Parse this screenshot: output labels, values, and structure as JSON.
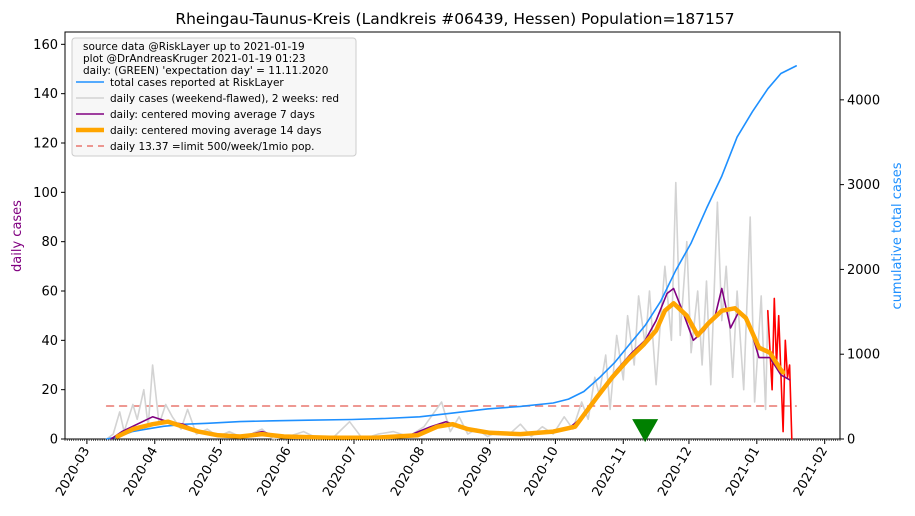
{
  "chart_data": {
    "type": "line",
    "title": "Rheingau-Taunus-Kreis (Landkreis #06439, Hessen) Population=187157",
    "ylabel_left": "daily cases",
    "ylabel_right": "cumulative total cases",
    "ylim_left": [
      0,
      165
    ],
    "ylim_right": [
      0,
      4800
    ],
    "yticks_left": [
      0,
      20,
      40,
      60,
      80,
      100,
      120,
      140,
      160
    ],
    "yticks_right": [
      0,
      1000,
      2000,
      3000,
      4000
    ],
    "x_ticks": [
      "2020-03",
      "2020-04",
      "2020-05",
      "2020-06",
      "2020-07",
      "2020-08",
      "2020-09",
      "2020-10",
      "2020-11",
      "2020-12",
      "2021-01",
      "2021-02"
    ],
    "x_start": "2020-02-20",
    "x_end": "2021-02-08",
    "legend_header": [
      "source data @RiskLayer up to 2021-01-19",
      "plot @DrAndreasKruger 2021-01-19 01:23",
      "daily: (GREEN) 'expectation day' = 11.11.2020"
    ],
    "legend_position": "top-left",
    "colors": {
      "total": "#1e90ff",
      "daily": "#d3d3d3",
      "daily_recent": "#ff0000",
      "ma7": "#800080",
      "ma14": "#ffa500",
      "limit": "#e8776f",
      "expectation": "#008000",
      "right_axis": "#1e90ff",
      "left_axis": "#800080"
    },
    "series": [
      {
        "name": "total cases reported at RiskLayer",
        "axis": "right",
        "points": [
          [
            "2020-03-10",
            0
          ],
          [
            "2020-03-15",
            25
          ],
          [
            "2020-03-22",
            90
          ],
          [
            "2020-03-29",
            120
          ],
          [
            "2020-04-05",
            150
          ],
          [
            "2020-04-15",
            175
          ],
          [
            "2020-04-25",
            185
          ],
          [
            "2020-05-10",
            205
          ],
          [
            "2020-05-25",
            215
          ],
          [
            "2020-06-10",
            222
          ],
          [
            "2020-06-30",
            230
          ],
          [
            "2020-07-15",
            242
          ],
          [
            "2020-07-31",
            262
          ],
          [
            "2020-08-15",
            305
          ],
          [
            "2020-08-31",
            355
          ],
          [
            "2020-09-15",
            385
          ],
          [
            "2020-09-30",
            425
          ],
          [
            "2020-10-07",
            470
          ],
          [
            "2020-10-14",
            560
          ],
          [
            "2020-10-21",
            720
          ],
          [
            "2020-10-28",
            900
          ],
          [
            "2020-11-04",
            1120
          ],
          [
            "2020-11-11",
            1340
          ],
          [
            "2020-11-18",
            1620
          ],
          [
            "2020-11-25",
            1990
          ],
          [
            "2020-12-02",
            2310
          ],
          [
            "2020-12-09",
            2720
          ],
          [
            "2020-12-16",
            3100
          ],
          [
            "2020-12-23",
            3560
          ],
          [
            "2020-12-30",
            3860
          ],
          [
            "2021-01-06",
            4130
          ],
          [
            "2021-01-12",
            4310
          ],
          [
            "2021-01-19",
            4400
          ]
        ]
      },
      {
        "name": "daily cases (weekend-flawed), 2 weeks: red",
        "axis": "left",
        "points": [
          [
            "2020-03-10",
            0
          ],
          [
            "2020-03-13",
            2
          ],
          [
            "2020-03-16",
            11
          ],
          [
            "2020-03-18",
            3
          ],
          [
            "2020-03-22",
            14
          ],
          [
            "2020-03-24",
            8
          ],
          [
            "2020-03-27",
            20
          ],
          [
            "2020-03-29",
            5
          ],
          [
            "2020-03-31",
            30
          ],
          [
            "2020-04-03",
            6
          ],
          [
            "2020-04-06",
            14
          ],
          [
            "2020-04-09",
            9
          ],
          [
            "2020-04-13",
            4
          ],
          [
            "2020-04-16",
            12
          ],
          [
            "2020-04-20",
            2
          ],
          [
            "2020-04-25",
            4
          ],
          [
            "2020-04-30",
            1
          ],
          [
            "2020-05-05",
            3
          ],
          [
            "2020-05-10",
            1
          ],
          [
            "2020-05-15",
            2
          ],
          [
            "2020-05-20",
            4
          ],
          [
            "2020-05-25",
            0
          ],
          [
            "2020-06-01",
            1
          ],
          [
            "2020-06-08",
            3
          ],
          [
            "2020-06-15",
            0
          ],
          [
            "2020-06-22",
            1
          ],
          [
            "2020-06-29",
            7
          ],
          [
            "2020-07-05",
            0
          ],
          [
            "2020-07-12",
            2
          ],
          [
            "2020-07-19",
            3
          ],
          [
            "2020-07-26",
            1
          ],
          [
            "2020-08-02",
            5
          ],
          [
            "2020-08-06",
            10
          ],
          [
            "2020-08-10",
            15
          ],
          [
            "2020-08-14",
            3
          ],
          [
            "2020-08-18",
            9
          ],
          [
            "2020-08-22",
            2
          ],
          [
            "2020-08-26",
            4
          ],
          [
            "2020-08-31",
            1
          ],
          [
            "2020-09-05",
            3
          ],
          [
            "2020-09-10",
            2
          ],
          [
            "2020-09-15",
            6
          ],
          [
            "2020-09-20",
            1
          ],
          [
            "2020-09-25",
            5
          ],
          [
            "2020-09-30",
            2
          ],
          [
            "2020-10-05",
            9
          ],
          [
            "2020-10-09",
            4
          ],
          [
            "2020-10-13",
            15
          ],
          [
            "2020-10-16",
            8
          ],
          [
            "2020-10-19",
            25
          ],
          [
            "2020-10-21",
            18
          ],
          [
            "2020-10-24",
            34
          ],
          [
            "2020-10-26",
            12
          ],
          [
            "2020-10-29",
            42
          ],
          [
            "2020-11-01",
            24
          ],
          [
            "2020-11-03",
            50
          ],
          [
            "2020-11-06",
            30
          ],
          [
            "2020-11-08",
            58
          ],
          [
            "2020-11-11",
            38
          ],
          [
            "2020-11-13",
            60
          ],
          [
            "2020-11-16",
            22
          ],
          [
            "2020-11-18",
            48
          ],
          [
            "2020-11-20",
            70
          ],
          [
            "2020-11-23",
            40
          ],
          [
            "2020-11-25",
            104
          ],
          [
            "2020-11-27",
            42
          ],
          [
            "2020-11-30",
            80
          ],
          [
            "2020-12-02",
            35
          ],
          [
            "2020-12-05",
            60
          ],
          [
            "2020-12-07",
            30
          ],
          [
            "2020-12-09",
            64
          ],
          [
            "2020-12-11",
            22
          ],
          [
            "2020-12-14",
            96
          ],
          [
            "2020-12-16",
            48
          ],
          [
            "2020-12-18",
            70
          ],
          [
            "2020-12-21",
            25
          ],
          [
            "2020-12-23",
            60
          ],
          [
            "2020-12-26",
            20
          ],
          [
            "2020-12-29",
            90
          ],
          [
            "2020-12-31",
            15
          ],
          [
            "2021-01-03",
            58
          ],
          [
            "2021-01-05",
            12
          ],
          [
            "2021-01-06",
            52
          ]
        ]
      },
      {
        "name": "daily cases (weekend-flawed), 2 weeks: red",
        "axis": "left",
        "points": [
          [
            "2021-01-06",
            52
          ],
          [
            "2021-01-08",
            20
          ],
          [
            "2021-01-09",
            57
          ],
          [
            "2021-01-10",
            30
          ],
          [
            "2021-01-11",
            50
          ],
          [
            "2021-01-13",
            3
          ],
          [
            "2021-01-14",
            40
          ],
          [
            "2021-01-15",
            25
          ],
          [
            "2021-01-16",
            30
          ],
          [
            "2021-01-17",
            0
          ]
        ]
      },
      {
        "name": "daily: centered moving average 7 days",
        "axis": "left",
        "points": [
          [
            "2020-03-12",
            0
          ],
          [
            "2020-03-17",
            3
          ],
          [
            "2020-03-24",
            6
          ],
          [
            "2020-03-31",
            9
          ],
          [
            "2020-04-07",
            7
          ],
          [
            "2020-04-14",
            6
          ],
          [
            "2020-04-21",
            3
          ],
          [
            "2020-04-28",
            1.5
          ],
          [
            "2020-05-10",
            1
          ],
          [
            "2020-05-20",
            3
          ],
          [
            "2020-05-28",
            1
          ],
          [
            "2020-06-15",
            0.5
          ],
          [
            "2020-07-05",
            0.5
          ],
          [
            "2020-07-25",
            1
          ],
          [
            "2020-08-05",
            5
          ],
          [
            "2020-08-12",
            7
          ],
          [
            "2020-08-19",
            5
          ],
          [
            "2020-08-26",
            3
          ],
          [
            "2020-09-05",
            2
          ],
          [
            "2020-09-20",
            2
          ],
          [
            "2020-10-01",
            3
          ],
          [
            "2020-10-08",
            5
          ],
          [
            "2020-10-15",
            10
          ],
          [
            "2020-10-22",
            20
          ],
          [
            "2020-10-29",
            28
          ],
          [
            "2020-11-05",
            35
          ],
          [
            "2020-11-11",
            40
          ],
          [
            "2020-11-16",
            48
          ],
          [
            "2020-11-21",
            59
          ],
          [
            "2020-11-24",
            61
          ],
          [
            "2020-11-28",
            52
          ],
          [
            "2020-12-03",
            40
          ],
          [
            "2020-12-08",
            44
          ],
          [
            "2020-12-13",
            50
          ],
          [
            "2020-12-16",
            61
          ],
          [
            "2020-12-20",
            45
          ],
          [
            "2020-12-24",
            52
          ],
          [
            "2020-12-28",
            48
          ],
          [
            "2021-01-02",
            33
          ],
          [
            "2021-01-07",
            33
          ],
          [
            "2021-01-12",
            26
          ],
          [
            "2021-01-16",
            24
          ]
        ]
      },
      {
        "name": "daily: centered moving average 14 days",
        "axis": "left",
        "points": [
          [
            "2020-03-15",
            1
          ],
          [
            "2020-03-22",
            4
          ],
          [
            "2020-03-31",
            6
          ],
          [
            "2020-04-07",
            7
          ],
          [
            "2020-04-14",
            5
          ],
          [
            "2020-04-21",
            3
          ],
          [
            "2020-04-30",
            1.5
          ],
          [
            "2020-05-10",
            1
          ],
          [
            "2020-05-20",
            2
          ],
          [
            "2020-05-30",
            1
          ],
          [
            "2020-06-20",
            0.5
          ],
          [
            "2020-07-10",
            0.5
          ],
          [
            "2020-07-30",
            1.5
          ],
          [
            "2020-08-08",
            5
          ],
          [
            "2020-08-15",
            6
          ],
          [
            "2020-08-22",
            4
          ],
          [
            "2020-09-01",
            2.5
          ],
          [
            "2020-09-15",
            2
          ],
          [
            "2020-09-30",
            3
          ],
          [
            "2020-10-10",
            5
          ],
          [
            "2020-10-20",
            17
          ],
          [
            "2020-10-27",
            25
          ],
          [
            "2020-11-03",
            32
          ],
          [
            "2020-11-10",
            38
          ],
          [
            "2020-11-16",
            44
          ],
          [
            "2020-11-20",
            52
          ],
          [
            "2020-11-24",
            55
          ],
          [
            "2020-11-30",
            50
          ],
          [
            "2020-12-05",
            42
          ],
          [
            "2020-12-10",
            47
          ],
          [
            "2020-12-16",
            52
          ],
          [
            "2020-12-22",
            53
          ],
          [
            "2020-12-27",
            49
          ],
          [
            "2021-01-02",
            37
          ],
          [
            "2021-01-07",
            35
          ],
          [
            "2021-01-12",
            28
          ],
          [
            "2021-01-13",
            27
          ]
        ]
      },
      {
        "name": "daily 13.37 =limit 500/week/1mio pop.",
        "axis": "left",
        "points": [
          [
            "2020-03-10",
            13.37
          ],
          [
            "2021-01-19",
            13.37
          ]
        ]
      }
    ],
    "legend": [
      {
        "label": "total cases reported at RiskLayer",
        "style": "line"
      },
      {
        "label": "daily cases (weekend-flawed), 2 weeks: red",
        "style": "line"
      },
      {
        "label": "daily: centered moving average 7 days",
        "style": "line"
      },
      {
        "label": "daily: centered moving average 14 days",
        "style": "thick"
      },
      {
        "label": "daily 13.37 =limit 500/week/1mio pop.",
        "style": "dash"
      }
    ],
    "expectation_marker": {
      "date": "2020-11-11",
      "y": 4
    }
  }
}
